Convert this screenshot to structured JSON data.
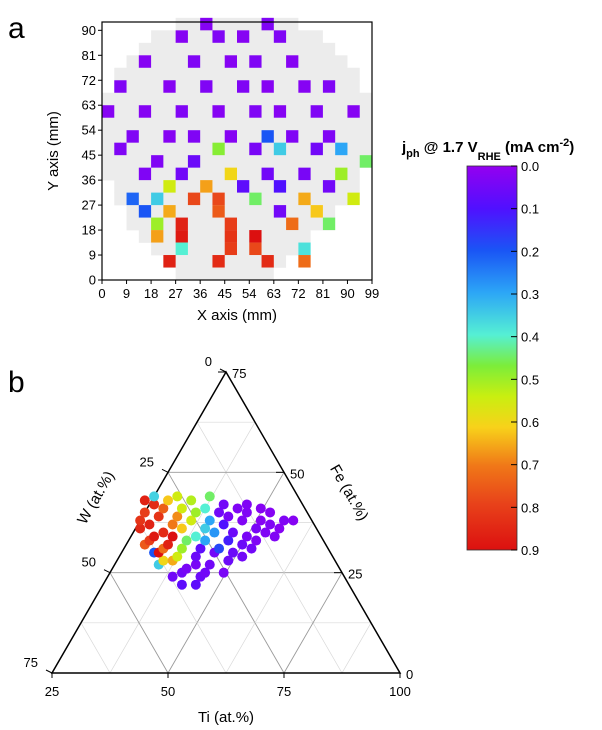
{
  "panel_a_label": "a",
  "panel_b_label": "b",
  "colorbar": {
    "title_main": "j",
    "title_sub": "ph",
    "title_mid": " @ 1.7 V",
    "title_sub2": "RHE",
    "title_end": " (mA cm",
    "title_sup": "-2",
    "title_close": ")",
    "ticks": [
      "0.0",
      "0.1",
      "0.2",
      "0.3",
      "0.4",
      "0.5",
      "0.6",
      "0.7",
      "0.8",
      "0.9"
    ]
  },
  "chart_data": [
    {
      "type": "heatmap",
      "xlabel": "X axis (mm)",
      "ylabel": "Y axis (mm)",
      "xticks": [
        "0",
        "9",
        "18",
        "27",
        "36",
        "45",
        "54",
        "63",
        "72",
        "81",
        "90",
        "99"
      ],
      "yticks": [
        "0",
        "9",
        "18",
        "27",
        "36",
        "45",
        "54",
        "63",
        "72",
        "81",
        "90"
      ],
      "xlim": [
        0,
        99
      ],
      "ylim": [
        0,
        93
      ],
      "cell_size_mm": [
        4.5,
        4.5
      ],
      "wafer_rows": [
        {
          "y": 90,
          "x0": 27,
          "x1": 67.5
        },
        {
          "y": 85.5,
          "x0": 18,
          "x1": 76.5
        },
        {
          "y": 81,
          "x0": 13.5,
          "x1": 81
        },
        {
          "y": 76.5,
          "x0": 9,
          "x1": 85.5
        },
        {
          "y": 72,
          "x0": 4.5,
          "x1": 90
        },
        {
          "y": 67.5,
          "x0": 4.5,
          "x1": 90
        },
        {
          "y": 63,
          "x0": 0,
          "x1": 94.5
        },
        {
          "y": 58.5,
          "x0": 0,
          "x1": 94.5
        },
        {
          "y": 54,
          "x0": 0,
          "x1": 94.5
        },
        {
          "y": 49.5,
          "x0": 0,
          "x1": 94.5
        },
        {
          "y": 45,
          "x0": 0,
          "x1": 94.5
        },
        {
          "y": 40.5,
          "x0": 0,
          "x1": 94.5
        },
        {
          "y": 36,
          "x0": 0,
          "x1": 90
        },
        {
          "y": 31.5,
          "x0": 4.5,
          "x1": 90
        },
        {
          "y": 27,
          "x0": 4.5,
          "x1": 85.5
        },
        {
          "y": 22.5,
          "x0": 9,
          "x1": 81
        },
        {
          "y": 18,
          "x0": 9,
          "x1": 81
        },
        {
          "y": 13.5,
          "x0": 13.5,
          "x1": 72
        },
        {
          "y": 9,
          "x0": 18,
          "x1": 67.5
        },
        {
          "y": 4.5,
          "x0": 22.5,
          "x1": 63
        },
        {
          "y": 0,
          "x0": 27,
          "x1": 58.5
        }
      ],
      "cells": [
        {
          "x": 36,
          "y": 90,
          "v": 0.02
        },
        {
          "x": 58.5,
          "y": 90,
          "v": 0.03
        },
        {
          "x": 27,
          "y": 85.5,
          "v": 0.02
        },
        {
          "x": 40.5,
          "y": 85.5,
          "v": 0.03
        },
        {
          "x": 49.5,
          "y": 85.5,
          "v": 0.02
        },
        {
          "x": 63,
          "y": 85.5,
          "v": 0.03
        },
        {
          "x": 13.5,
          "y": 76.5,
          "v": 0.02
        },
        {
          "x": 31.5,
          "y": 76.5,
          "v": 0.03
        },
        {
          "x": 45,
          "y": 76.5,
          "v": 0.02
        },
        {
          "x": 54,
          "y": 76.5,
          "v": 0.03
        },
        {
          "x": 67.5,
          "y": 76.5,
          "v": 0.02
        },
        {
          "x": 4.5,
          "y": 67.5,
          "v": 0.03
        },
        {
          "x": 22.5,
          "y": 67.5,
          "v": 0.02
        },
        {
          "x": 36,
          "y": 67.5,
          "v": 0.03
        },
        {
          "x": 49.5,
          "y": 67.5,
          "v": 0.03
        },
        {
          "x": 58.5,
          "y": 67.5,
          "v": 0.02
        },
        {
          "x": 72,
          "y": 67.5,
          "v": 0.02
        },
        {
          "x": 81,
          "y": 67.5,
          "v": 0.03
        },
        {
          "x": 0,
          "y": 58.5,
          "v": 0.02
        },
        {
          "x": 13.5,
          "y": 58.5,
          "v": 0.02
        },
        {
          "x": 27,
          "y": 58.5,
          "v": 0.03
        },
        {
          "x": 40.5,
          "y": 58.5,
          "v": 0.02
        },
        {
          "x": 54,
          "y": 58.5,
          "v": 0.03
        },
        {
          "x": 63,
          "y": 58.5,
          "v": 0.02
        },
        {
          "x": 76.5,
          "y": 58.5,
          "v": 0.03
        },
        {
          "x": 90,
          "y": 58.5,
          "v": 0.02
        },
        {
          "x": 9,
          "y": 49.5,
          "v": 0.03
        },
        {
          "x": 22.5,
          "y": 49.5,
          "v": 0.02
        },
        {
          "x": 31.5,
          "y": 49.5,
          "v": 0.03
        },
        {
          "x": 45,
          "y": 49.5,
          "v": 0.02
        },
        {
          "x": 58.5,
          "y": 49.5,
          "v": 0.2
        },
        {
          "x": 67.5,
          "y": 49.5,
          "v": 0.03
        },
        {
          "x": 81,
          "y": 49.5,
          "v": 0.03
        },
        {
          "x": 4.5,
          "y": 45,
          "v": 0.03
        },
        {
          "x": 40.5,
          "y": 45,
          "v": 0.48
        },
        {
          "x": 54,
          "y": 45,
          "v": 0.04
        },
        {
          "x": 63,
          "y": 45,
          "v": 0.35
        },
        {
          "x": 76.5,
          "y": 45,
          "v": 0.05
        },
        {
          "x": 85.5,
          "y": 45,
          "v": 0.3
        },
        {
          "x": 18,
          "y": 40.5,
          "v": 0.03
        },
        {
          "x": 31.5,
          "y": 40.5,
          "v": 0.06
        },
        {
          "x": 94.5,
          "y": 40.5,
          "v": 0.45
        },
        {
          "x": 13.5,
          "y": 36,
          "v": 0.03
        },
        {
          "x": 27,
          "y": 36,
          "v": 0.05
        },
        {
          "x": 45,
          "y": 36,
          "v": 0.6
        },
        {
          "x": 58.5,
          "y": 36,
          "v": 0.05
        },
        {
          "x": 72,
          "y": 36,
          "v": 0.04
        },
        {
          "x": 85.5,
          "y": 36,
          "v": 0.5
        },
        {
          "x": 22.5,
          "y": 31.5,
          "v": 0.55
        },
        {
          "x": 36,
          "y": 31.5,
          "v": 0.66
        },
        {
          "x": 49.5,
          "y": 31.5,
          "v": 0.08
        },
        {
          "x": 63,
          "y": 31.5,
          "v": 0.1
        },
        {
          "x": 81,
          "y": 31.5,
          "v": 0.05
        },
        {
          "x": 9,
          "y": 27,
          "v": 0.22
        },
        {
          "x": 18,
          "y": 27,
          "v": 0.35
        },
        {
          "x": 31.5,
          "y": 27,
          "v": 0.78
        },
        {
          "x": 40.5,
          "y": 27,
          "v": 0.78
        },
        {
          "x": 54,
          "y": 27,
          "v": 0.45
        },
        {
          "x": 72,
          "y": 27,
          "v": 0.65
        },
        {
          "x": 90,
          "y": 27,
          "v": 0.55
        },
        {
          "x": 13.5,
          "y": 22.5,
          "v": 0.2
        },
        {
          "x": 22.5,
          "y": 22.5,
          "v": 0.65
        },
        {
          "x": 40.5,
          "y": 22.5,
          "v": 0.75
        },
        {
          "x": 63,
          "y": 22.5,
          "v": 0.05
        },
        {
          "x": 76.5,
          "y": 22.5,
          "v": 0.62
        },
        {
          "x": 18,
          "y": 18,
          "v": 0.5
        },
        {
          "x": 27,
          "y": 18,
          "v": 0.86
        },
        {
          "x": 45,
          "y": 18,
          "v": 0.8
        },
        {
          "x": 67.5,
          "y": 18,
          "v": 0.72
        },
        {
          "x": 81,
          "y": 18,
          "v": 0.45
        },
        {
          "x": 18,
          "y": 13.5,
          "v": 0.66
        },
        {
          "x": 27,
          "y": 13.5,
          "v": 0.88
        },
        {
          "x": 45,
          "y": 13.5,
          "v": 0.82
        },
        {
          "x": 54,
          "y": 13.5,
          "v": 0.9
        },
        {
          "x": 27,
          "y": 9,
          "v": 0.4
        },
        {
          "x": 45,
          "y": 9,
          "v": 0.8
        },
        {
          "x": 54,
          "y": 9,
          "v": 0.78
        },
        {
          "x": 72,
          "y": 9,
          "v": 0.38
        },
        {
          "x": 22.5,
          "y": 4.5,
          "v": 0.86
        },
        {
          "x": 40.5,
          "y": 4.5,
          "v": 0.84
        },
        {
          "x": 58.5,
          "y": 4.5,
          "v": 0.84
        },
        {
          "x": 72,
          "y": 4.5,
          "v": 0.72
        }
      ]
    },
    {
      "type": "scatter",
      "subtype": "ternary",
      "axis_labels": {
        "bottom": "Ti (at.%)",
        "left": "W (at.%)",
        "right": "Fe (at.%)"
      },
      "ticks": {
        "bottom": [
          "25",
          "50",
          "75",
          "100"
        ],
        "left": [
          "75",
          "50",
          "25",
          "0"
        ],
        "right": [
          "0",
          "25",
          "50",
          "75"
        ]
      },
      "grid": true,
      "points": [
        {
          "ti": 48,
          "w": 27,
          "v": 0.35
        },
        {
          "ti": 51,
          "w": 24,
          "v": 0.05
        },
        {
          "ti": 53,
          "w": 22,
          "v": 0.08
        },
        {
          "ti": 47,
          "w": 30,
          "v": 0.2
        },
        {
          "ti": 49,
          "w": 28,
          "v": 0.6
        },
        {
          "ti": 53,
          "w": 25,
          "v": 0.05
        },
        {
          "ti": 56,
          "w": 22,
          "v": 0.08
        },
        {
          "ti": 45,
          "w": 32,
          "v": 0.75
        },
        {
          "ti": 48,
          "w": 30,
          "v": 0.9
        },
        {
          "ti": 51,
          "w": 28,
          "v": 0.65
        },
        {
          "ti": 54,
          "w": 26,
          "v": 0.04
        },
        {
          "ti": 57,
          "w": 24,
          "v": 0.06
        },
        {
          "ti": 46,
          "w": 33,
          "v": 0.8
        },
        {
          "ti": 49,
          "w": 31,
          "v": 0.72
        },
        {
          "ti": 52,
          "w": 29,
          "v": 0.55
        },
        {
          "ti": 56,
          "w": 27,
          "v": 0.04
        },
        {
          "ti": 58,
          "w": 25,
          "v": 0.05
        },
        {
          "ti": 44,
          "w": 36,
          "v": 0.85
        },
        {
          "ti": 47,
          "w": 34,
          "v": 0.88
        },
        {
          "ti": 50,
          "w": 32,
          "v": 0.86
        },
        {
          "ti": 53,
          "w": 31,
          "v": 0.5
        },
        {
          "ti": 56,
          "w": 29,
          "v": 0.06
        },
        {
          "ti": 59,
          "w": 27,
          "v": 0.05
        },
        {
          "ti": 62,
          "w": 25,
          "v": 0.04
        },
        {
          "ti": 44,
          "w": 38,
          "v": 0.82
        },
        {
          "ti": 46,
          "w": 37,
          "v": 0.86
        },
        {
          "ti": 49,
          "w": 35,
          "v": 0.84
        },
        {
          "ti": 51,
          "w": 34,
          "v": 0.9
        },
        {
          "ti": 54,
          "w": 33,
          "v": 0.45
        },
        {
          "ti": 57,
          "w": 31,
          "v": 0.08
        },
        {
          "ti": 60,
          "w": 30,
          "v": 0.05
        },
        {
          "ti": 63,
          "w": 28,
          "v": 0.06
        },
        {
          "ti": 45,
          "w": 40,
          "v": 0.8
        },
        {
          "ti": 48,
          "w": 39,
          "v": 0.82
        },
        {
          "ti": 51,
          "w": 37,
          "v": 0.7
        },
        {
          "ti": 53,
          "w": 36,
          "v": 0.62
        },
        {
          "ti": 56,
          "w": 34,
          "v": 0.4
        },
        {
          "ti": 58,
          "w": 33,
          "v": 0.3
        },
        {
          "ti": 61,
          "w": 31,
          "v": 0.18
        },
        {
          "ti": 64,
          "w": 30,
          "v": 0.06
        },
        {
          "ti": 66,
          "w": 29,
          "v": 0.05
        },
        {
          "ti": 45,
          "w": 43,
          "v": 0.86
        },
        {
          "ti": 47,
          "w": 42,
          "v": 0.84
        },
        {
          "ti": 49,
          "w": 41,
          "v": 0.74
        },
        {
          "ti": 52,
          "w": 39,
          "v": 0.68
        },
        {
          "ti": 55,
          "w": 38,
          "v": 0.55
        },
        {
          "ti": 58,
          "w": 36,
          "v": 0.35
        },
        {
          "ti": 60,
          "w": 35,
          "v": 0.28
        },
        {
          "ti": 63,
          "w": 33,
          "v": 0.12
        },
        {
          "ti": 66,
          "w": 32,
          "v": 0.06
        },
        {
          "ti": 68,
          "w": 31,
          "v": 0.05
        },
        {
          "ti": 47,
          "w": 44,
          "v": 0.36
        },
        {
          "ti": 50,
          "w": 43,
          "v": 0.62
        },
        {
          "ti": 53,
          "w": 41,
          "v": 0.55
        },
        {
          "ti": 56,
          "w": 40,
          "v": 0.5
        },
        {
          "ti": 59,
          "w": 38,
          "v": 0.3
        },
        {
          "ti": 62,
          "w": 37,
          "v": 0.1
        },
        {
          "ti": 64,
          "w": 35,
          "v": 0.06
        },
        {
          "ti": 67,
          "w": 34,
          "v": 0.04
        },
        {
          "ti": 69,
          "w": 33,
          "v": 0.03
        },
        {
          "ti": 52,
          "w": 44,
          "v": 0.55
        },
        {
          "ti": 55,
          "w": 43,
          "v": 0.52
        },
        {
          "ti": 58,
          "w": 41,
          "v": 0.4
        },
        {
          "ti": 61,
          "w": 40,
          "v": 0.05
        },
        {
          "ti": 63,
          "w": 39,
          "v": 0.04
        },
        {
          "ti": 66,
          "w": 38,
          "v": 0.03
        },
        {
          "ti": 69,
          "w": 36,
          "v": 0.04
        },
        {
          "ti": 71,
          "w": 35,
          "v": 0.03
        },
        {
          "ti": 73,
          "w": 34,
          "v": 0.03
        },
        {
          "ti": 59,
          "w": 44,
          "v": 0.45
        },
        {
          "ti": 62,
          "w": 42,
          "v": 0.05
        },
        {
          "ti": 65,
          "w": 41,
          "v": 0.03
        },
        {
          "ti": 67,
          "w": 40,
          "v": 0.03
        },
        {
          "ti": 70,
          "w": 38,
          "v": 0.02
        },
        {
          "ti": 72,
          "w": 37,
          "v": 0.03
        },
        {
          "ti": 74,
          "w": 36,
          "v": 0.02
        },
        {
          "ti": 67,
          "w": 42,
          "v": 0.03
        },
        {
          "ti": 70,
          "w": 41,
          "v": 0.02
        },
        {
          "ti": 72,
          "w": 40,
          "v": 0.02
        },
        {
          "ti": 75,
          "w": 38,
          "v": 0.03
        },
        {
          "ti": 77,
          "w": 38,
          "v": 0.02
        }
      ]
    }
  ]
}
